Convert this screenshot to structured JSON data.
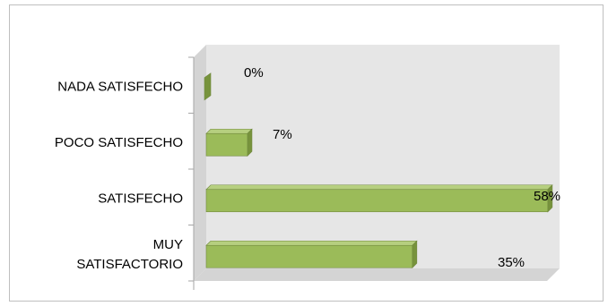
{
  "chart_data": {
    "type": "bar",
    "orientation": "horizontal",
    "style": "3d",
    "categories": [
      "NADA SATISFECHO",
      "POCO SATISFECHO",
      "SATISFECHO",
      "MUY SATISFACTORIO"
    ],
    "category_label_lines": [
      [
        "NADA SATISFECHO"
      ],
      [
        "POCO SATISFECHO"
      ],
      [
        "SATISFECHO"
      ],
      [
        "MUY",
        "SATISFACTORIO"
      ]
    ],
    "values": [
      0,
      7,
      58,
      35
    ],
    "value_labels": [
      "0%",
      "7%",
      "58%",
      "35%"
    ],
    "value_unit": "%",
    "xlim": [
      0,
      60
    ],
    "grid": false,
    "legend": "none",
    "colors": {
      "bar_front": "#9bbb59",
      "bar_top": "#b6cf7f",
      "bar_side": "#77933c",
      "bar_edge": "#71893f",
      "wall": "#e6e6e6",
      "floor": "#d4d4d4",
      "axis": "#a6a6a6",
      "frame": "#bfbfbf"
    }
  }
}
